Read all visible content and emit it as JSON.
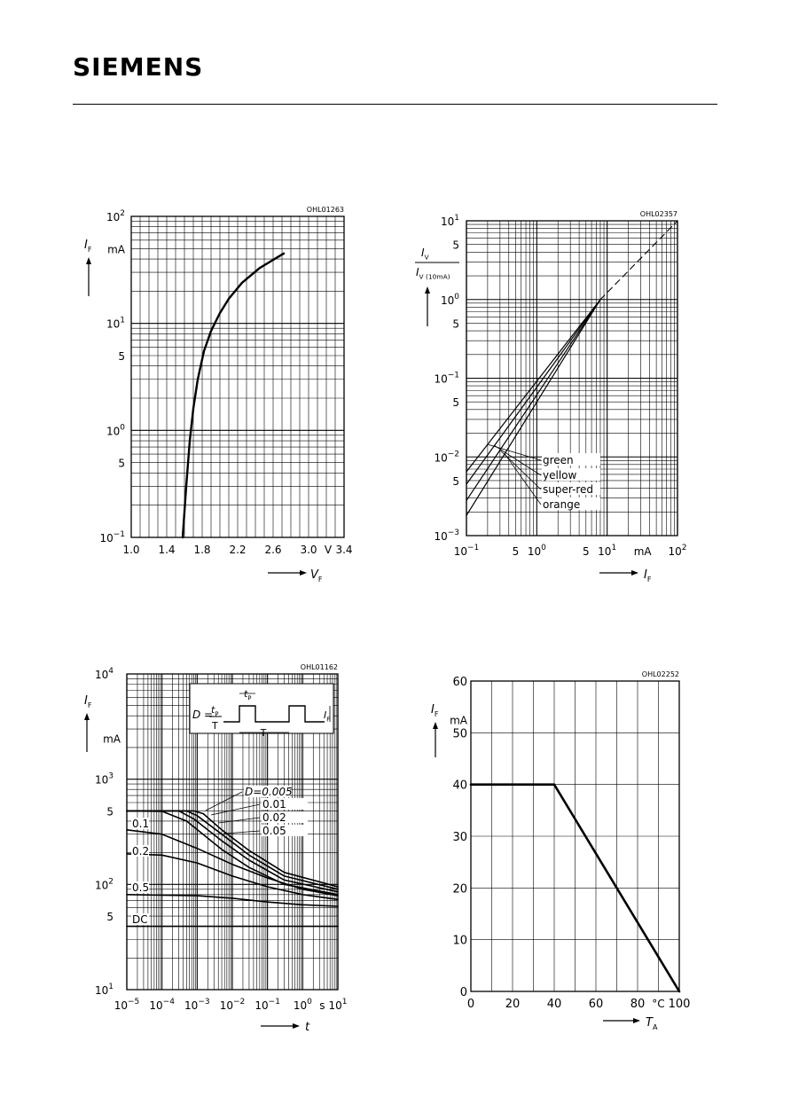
{
  "header": {
    "brand": "SIEMENS"
  },
  "chart_data": [
    {
      "type": "line",
      "code": "OHL01263",
      "xscale": "linear",
      "yscale": "log",
      "xlim": [
        1.0,
        3.4
      ],
      "ylim": [
        0.1,
        100
      ],
      "x_ticks": [
        "1.0",
        "1.4",
        "1.8",
        "2.2",
        "2.6",
        "3.0",
        "3.4"
      ],
      "x_unit": "V",
      "y_ticks": [
        "10⁻¹",
        "5",
        "10⁰",
        "5",
        "10¹",
        "10²"
      ],
      "y_unit": "mA",
      "ylabel": "I_F",
      "xlabel": "V_F",
      "grid": true,
      "series": [
        {
          "x": [
            1.58,
            1.62,
            1.66,
            1.7,
            1.75,
            1.82,
            1.9,
            2.0,
            2.1,
            2.25,
            2.45,
            2.72
          ],
          "y": [
            0.1,
            0.3,
            0.8,
            1.6,
            3.0,
            5.5,
            8.5,
            12.5,
            17.0,
            24.0,
            33.0,
            45.0
          ]
        }
      ]
    },
    {
      "type": "line",
      "code": "OHL02357",
      "xscale": "log",
      "yscale": "log",
      "xlim": [
        0.1,
        100
      ],
      "ylim": [
        0.001,
        10
      ],
      "x_ticks": [
        "10⁻¹",
        "5",
        "10⁰",
        "5",
        "10¹",
        "10²"
      ],
      "x_unit": "mA",
      "y_ticks": [
        "10⁻³",
        "5",
        "10⁻²",
        "5",
        "10⁻¹",
        "5",
        "10⁰",
        "5",
        "10¹"
      ],
      "ylabel_num": "I_V",
      "ylabel_den": "I_V (10mA)",
      "xlabel": "I_F",
      "grid": true,
      "series": [
        {
          "name": "green",
          "x": [
            0.1,
            8
          ],
          "y": [
            0.0065,
            1.0
          ]
        },
        {
          "name": "yellow",
          "x": [
            0.1,
            8
          ],
          "y": [
            0.0045,
            1.0
          ]
        },
        {
          "name": "super-red",
          "x": [
            0.1,
            8
          ],
          "y": [
            0.0028,
            1.0
          ]
        },
        {
          "name": "orange",
          "x": [
            0.1,
            8
          ],
          "y": [
            0.0018,
            1.0
          ]
        },
        {
          "name": "extension",
          "x": [
            8,
            100
          ],
          "y": [
            1.0,
            10.0
          ],
          "dashed": true
        }
      ]
    },
    {
      "type": "line",
      "code": "OHL01162",
      "xscale": "log",
      "yscale": "log",
      "xlim": [
        1e-05,
        10
      ],
      "ylim": [
        10,
        10000
      ],
      "x_ticks": [
        "10⁻⁵",
        "10⁻⁴",
        "10⁻³",
        "10⁻²",
        "10⁻¹",
        "10⁰",
        "10¹"
      ],
      "x_unit": "s",
      "y_ticks": [
        "10¹",
        "5",
        "10²",
        "5",
        "10³",
        "10⁴"
      ],
      "y_unit": "mA",
      "ylabel": "I_F",
      "xlabel": "t",
      "grid": true,
      "inset": {
        "formula_lhs": "D =",
        "formula_num": "t_P",
        "formula_den": "T",
        "tp_label": "t_P",
        "T_label": "T",
        "IF_label": "I_F"
      },
      "series": [
        {
          "name": "D=0.005",
          "x": [
            1e-05,
            0.0008,
            0.0015,
            0.005,
            0.03,
            0.3,
            10
          ],
          "y": [
            500,
            500,
            470,
            330,
            210,
            130,
            95
          ]
        },
        {
          "name": "0.01",
          "x": [
            1e-05,
            0.0005,
            0.001,
            0.005,
            0.03,
            0.3,
            10
          ],
          "y": [
            500,
            500,
            450,
            300,
            190,
            120,
            90
          ]
        },
        {
          "name": "0.02",
          "x": [
            1e-05,
            0.0003,
            0.0008,
            0.005,
            0.03,
            0.3,
            10
          ],
          "y": [
            500,
            500,
            420,
            260,
            170,
            110,
            85
          ]
        },
        {
          "name": "0.05",
          "x": [
            1e-05,
            0.0001,
            0.0005,
            0.005,
            0.03,
            0.3,
            10
          ],
          "y": [
            500,
            495,
            400,
            215,
            145,
            100,
            80
          ]
        },
        {
          "name": "0.1",
          "x": [
            1e-05,
            0.0001,
            0.001,
            0.01,
            0.1,
            1,
            10
          ],
          "y": [
            330,
            300,
            220,
            155,
            115,
            90,
            78
          ]
        },
        {
          "name": "0.2",
          "x": [
            1e-05,
            0.0001,
            0.001,
            0.01,
            0.1,
            1,
            10
          ],
          "y": [
            195,
            190,
            160,
            120,
            95,
            80,
            72
          ]
        },
        {
          "name": "0.5",
          "x": [
            1e-05,
            0.001,
            0.01,
            0.1,
            1,
            10
          ],
          "y": [
            80,
            78,
            74,
            68,
            64,
            62
          ]
        },
        {
          "name": "DC",
          "x": [
            1e-05,
            10
          ],
          "y": [
            40,
            40
          ]
        }
      ]
    },
    {
      "type": "line",
      "code": "OHL02252",
      "xscale": "linear",
      "yscale": "linear",
      "xlim": [
        0,
        100
      ],
      "ylim": [
        0,
        60
      ],
      "x_ticks": [
        "0",
        "20",
        "40",
        "60",
        "80",
        "100"
      ],
      "x_unit": "°C",
      "y_ticks": [
        "0",
        "10",
        "20",
        "30",
        "40",
        "50",
        "60"
      ],
      "y_unit": "mA",
      "ylabel": "I_F",
      "xlabel": "T_A",
      "grid": true,
      "series": [
        {
          "x": [
            0,
            40,
            100
          ],
          "y": [
            40,
            40,
            0
          ]
        }
      ]
    }
  ]
}
